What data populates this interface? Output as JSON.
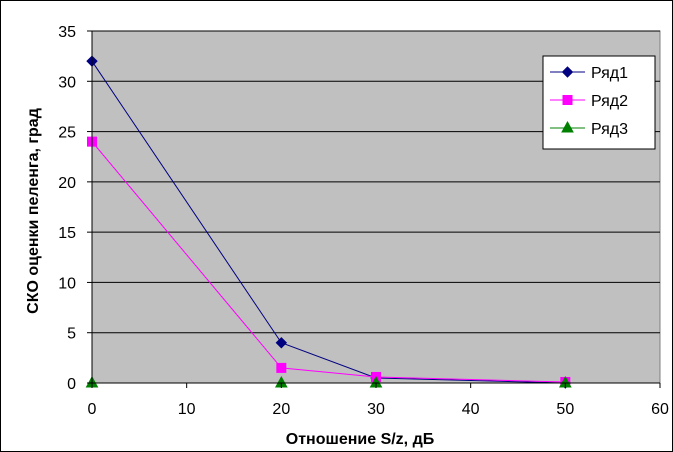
{
  "chart_data": {
    "type": "line",
    "xlabel": "Отношение S/z, дБ",
    "ylabel": "СКО оценки пеленга, град",
    "xlim": [
      0,
      60
    ],
    "ylim": [
      0,
      35
    ],
    "x_ticks": [
      "0",
      "10",
      "20",
      "30",
      "40",
      "50",
      "60"
    ],
    "y_ticks": [
      "0",
      "5",
      "10",
      "15",
      "20",
      "25",
      "30",
      "35"
    ],
    "grid": "horizontal",
    "plot_background": "#c0c0c0",
    "legend_position": "top-right",
    "series": [
      {
        "name": "Ряд1",
        "color": "#000080",
        "marker": "diamond",
        "x": [
          0,
          20,
          30,
          50
        ],
        "y": [
          32,
          4,
          0.5,
          0
        ]
      },
      {
        "name": "Ряд2",
        "color": "#ff00ff",
        "marker": "square",
        "x": [
          0,
          20,
          30,
          50
        ],
        "y": [
          24,
          1.5,
          0.6,
          0.1
        ]
      },
      {
        "name": "Ряд3",
        "color": "#008000",
        "marker": "triangle",
        "x": [
          0,
          20,
          30,
          50
        ],
        "y": [
          0,
          0,
          0,
          0
        ]
      }
    ]
  }
}
